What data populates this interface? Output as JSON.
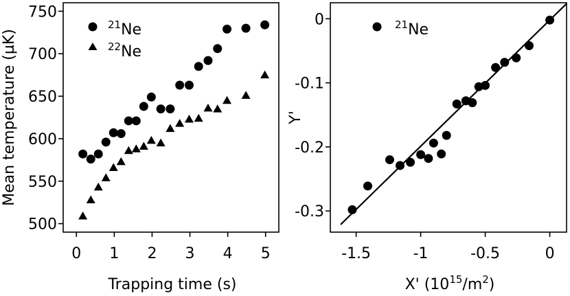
{
  "chart_data": [
    {
      "type": "scatter",
      "xlabel": "Trapping time (s)",
      "ylabel": "Mean temperature (µK)",
      "xlim": [
        -0.35,
        5.35
      ],
      "ylim": [
        490,
        760
      ],
      "xticks": [
        0,
        1,
        2,
        3,
        4,
        5
      ],
      "yticks": [
        500,
        550,
        600,
        650,
        700,
        750
      ],
      "legend_position": "top-left",
      "series": [
        {
          "name": "21Ne",
          "mass_number": "21",
          "element": "Ne",
          "marker": "circle",
          "points": [
            [
              0.17,
              582
            ],
            [
              0.38,
              576
            ],
            [
              0.58,
              582
            ],
            [
              0.78,
              596
            ],
            [
              0.98,
              607
            ],
            [
              1.18,
              606
            ],
            [
              1.38,
              621
            ],
            [
              1.58,
              621
            ],
            [
              1.78,
              638
            ],
            [
              1.98,
              649
            ],
            [
              2.23,
              635
            ],
            [
              2.48,
              635
            ],
            [
              2.73,
              663
            ],
            [
              2.98,
              663
            ],
            [
              3.23,
              685
            ],
            [
              3.48,
              692
            ],
            [
              3.73,
              706
            ],
            [
              3.98,
              729
            ],
            [
              4.48,
              730
            ],
            [
              4.98,
              734
            ]
          ]
        },
        {
          "name": "22Ne",
          "mass_number": "22",
          "element": "Ne",
          "marker": "triangle",
          "points": [
            [
              0.17,
              509
            ],
            [
              0.38,
              528
            ],
            [
              0.58,
              543
            ],
            [
              0.78,
              554
            ],
            [
              0.98,
              566
            ],
            [
              1.18,
              573
            ],
            [
              1.38,
              586
            ],
            [
              1.58,
              588
            ],
            [
              1.78,
              591
            ],
            [
              1.98,
              598
            ],
            [
              2.23,
              595
            ],
            [
              2.48,
              612
            ],
            [
              2.73,
              618
            ],
            [
              2.98,
              623
            ],
            [
              3.23,
              624
            ],
            [
              3.48,
              636
            ],
            [
              3.73,
              635
            ],
            [
              3.98,
              645
            ],
            [
              4.48,
              651
            ],
            [
              4.98,
              675
            ]
          ]
        }
      ]
    },
    {
      "type": "scatter",
      "xlabel_prefix": "X' (10",
      "xlabel_exp1": "15",
      "xlabel_mid": "/m",
      "xlabel_exp2": "2",
      "xlabel_suffix": ")",
      "ylabel": "Y'",
      "xlim": [
        -1.7,
        0.13
      ],
      "ylim": [
        -0.333,
        0.025
      ],
      "xticks": [
        -1.5,
        -1,
        -0.5,
        0
      ],
      "xtick_labels": [
        "-1.5",
        "-1",
        "-0.5",
        "0"
      ],
      "yticks": [
        0,
        -0.1,
        -0.2,
        -0.3
      ],
      "ytick_labels": [
        "0",
        "-0.1",
        "-0.2",
        "-0.3"
      ],
      "legend_position": "top-left",
      "series": [
        {
          "name": "21Ne",
          "mass_number": "21",
          "element": "Ne",
          "marker": "circle",
          "points": [
            [
              -1.53,
              -0.298
            ],
            [
              -1.41,
              -0.261
            ],
            [
              -1.24,
              -0.22
            ],
            [
              -1.16,
              -0.229
            ],
            [
              -1.08,
              -0.224
            ],
            [
              -1.0,
              -0.212
            ],
            [
              -0.94,
              -0.218
            ],
            [
              -0.9,
              -0.194
            ],
            [
              -0.84,
              -0.211
            ],
            [
              -0.8,
              -0.182
            ],
            [
              -0.72,
              -0.133
            ],
            [
              -0.65,
              -0.128
            ],
            [
              -0.6,
              -0.131
            ],
            [
              -0.55,
              -0.106
            ],
            [
              -0.5,
              -0.104
            ],
            [
              -0.42,
              -0.076
            ],
            [
              -0.35,
              -0.068
            ],
            [
              -0.26,
              -0.061
            ],
            [
              -0.16,
              -0.042
            ],
            [
              0.0,
              -0.002
            ]
          ]
        }
      ],
      "fit_line": {
        "slope": 0.197,
        "intercept": -0.002,
        "x_range": [
          -1.62,
          0.13
        ]
      }
    }
  ]
}
